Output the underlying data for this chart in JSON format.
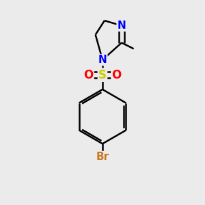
{
  "bg_color": "#ebebeb",
  "bond_color": "#000000",
  "bond_width": 1.8,
  "dbo": 0.012,
  "atom_colors": {
    "N": "#0000ff",
    "S": "#cccc00",
    "O": "#ff0000",
    "Br": "#cc7722",
    "C": "#000000"
  },
  "figsize": [
    3.0,
    3.0
  ],
  "dpi": 100
}
